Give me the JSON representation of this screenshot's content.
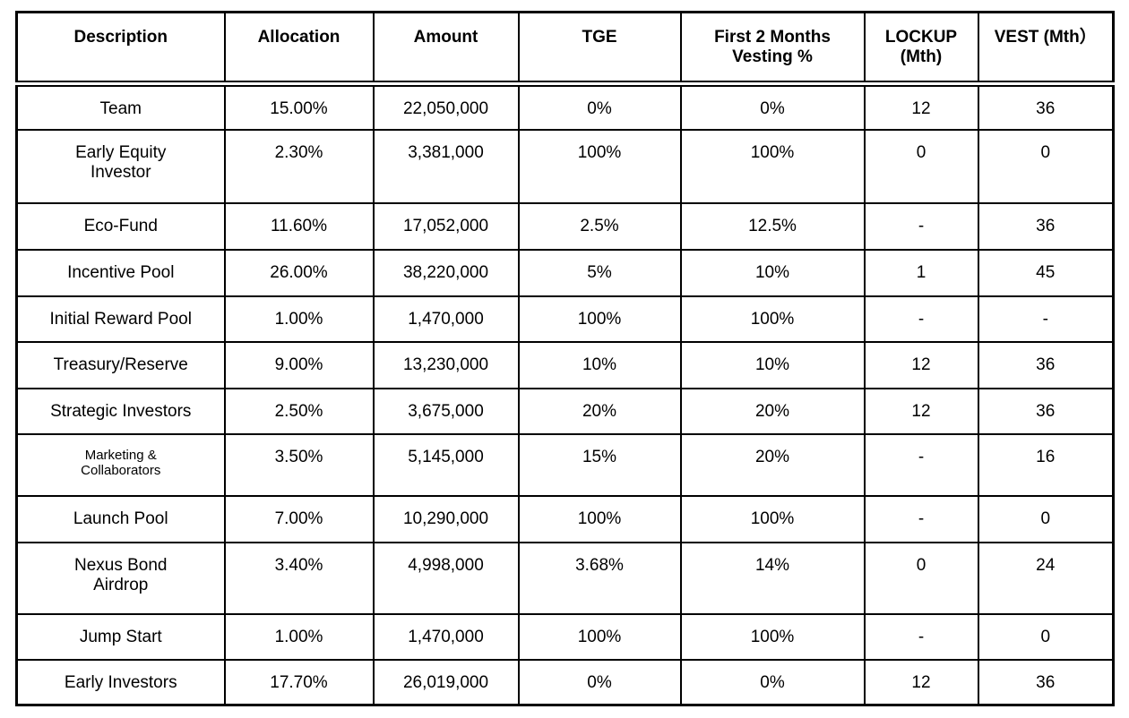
{
  "table": {
    "columns": [
      {
        "id": "description",
        "label": "Description"
      },
      {
        "id": "allocation",
        "label": "Allocation"
      },
      {
        "id": "amount",
        "label": "Amount"
      },
      {
        "id": "tge",
        "label": "TGE"
      },
      {
        "id": "first_2_months_vesting_pct",
        "label": "First 2 Months\nVesting %"
      },
      {
        "id": "lockup_mth",
        "label": "LOCKUP\n(Mth)"
      },
      {
        "id": "vest_mth",
        "label": "VEST (Mth）"
      }
    ],
    "rows": [
      {
        "description": "Team",
        "allocation": "15.00%",
        "amount": "22,050,000",
        "tge": "0%",
        "first_2_months_vesting_pct": "0%",
        "lockup_mth": "12",
        "vest_mth": "36"
      },
      {
        "description": "Early Equity\nInvestor",
        "allocation": "2.30%",
        "amount": "3,381,000",
        "tge": "100%",
        "first_2_months_vesting_pct": "100%",
        "lockup_mth": "0",
        "vest_mth": "0"
      },
      {
        "description": "Eco-Fund",
        "allocation": "11.60%",
        "amount": "17,052,000",
        "tge": "2.5%",
        "first_2_months_vesting_pct": "12.5%",
        "lockup_mth": "-",
        "vest_mth": "36"
      },
      {
        "description": "Incentive Pool",
        "allocation": "26.00%",
        "amount": "38,220,000",
        "tge": "5%",
        "first_2_months_vesting_pct": "10%",
        "lockup_mth": "1",
        "vest_mth": "45"
      },
      {
        "description": "Initial Reward Pool",
        "allocation": "1.00%",
        "amount": "1,470,000",
        "tge": "100%",
        "first_2_months_vesting_pct": "100%",
        "lockup_mth": "-",
        "vest_mth": "-"
      },
      {
        "description": "Treasury/Reserve",
        "allocation": "9.00%",
        "amount": "13,230,000",
        "tge": "10%",
        "first_2_months_vesting_pct": "10%",
        "lockup_mth": "12",
        "vest_mth": "36"
      },
      {
        "description": "Strategic Investors",
        "allocation": "2.50%",
        "amount": "3,675,000",
        "tge": "20%",
        "first_2_months_vesting_pct": "20%",
        "lockup_mth": "12",
        "vest_mth": "36"
      },
      {
        "description": "Marketing &\nCollaborators",
        "small_text": true,
        "allocation": "3.50%",
        "amount": "5,145,000",
        "tge": "15%",
        "first_2_months_vesting_pct": "20%",
        "lockup_mth": "-",
        "vest_mth": "16"
      },
      {
        "description": "Launch Pool",
        "allocation": "7.00%",
        "amount": "10,290,000",
        "tge": "100%",
        "first_2_months_vesting_pct": "100%",
        "lockup_mth": "-",
        "vest_mth": "0"
      },
      {
        "description": "Nexus Bond\nAirdrop",
        "allocation": "3.40%",
        "amount": "4,998,000",
        "tge": "3.68%",
        "first_2_months_vesting_pct": "14%",
        "lockup_mth": "0",
        "vest_mth": "24"
      },
      {
        "description": "Jump Start",
        "allocation": "1.00%",
        "amount": "1,470,000",
        "tge": "100%",
        "first_2_months_vesting_pct": "100%",
        "lockup_mth": "-",
        "vest_mth": "0"
      },
      {
        "description": "Early Investors",
        "allocation": "17.70%",
        "amount": "26,019,000",
        "tge": "0%",
        "first_2_months_vesting_pct": "0%",
        "lockup_mth": "12",
        "vest_mth": "36"
      }
    ]
  }
}
